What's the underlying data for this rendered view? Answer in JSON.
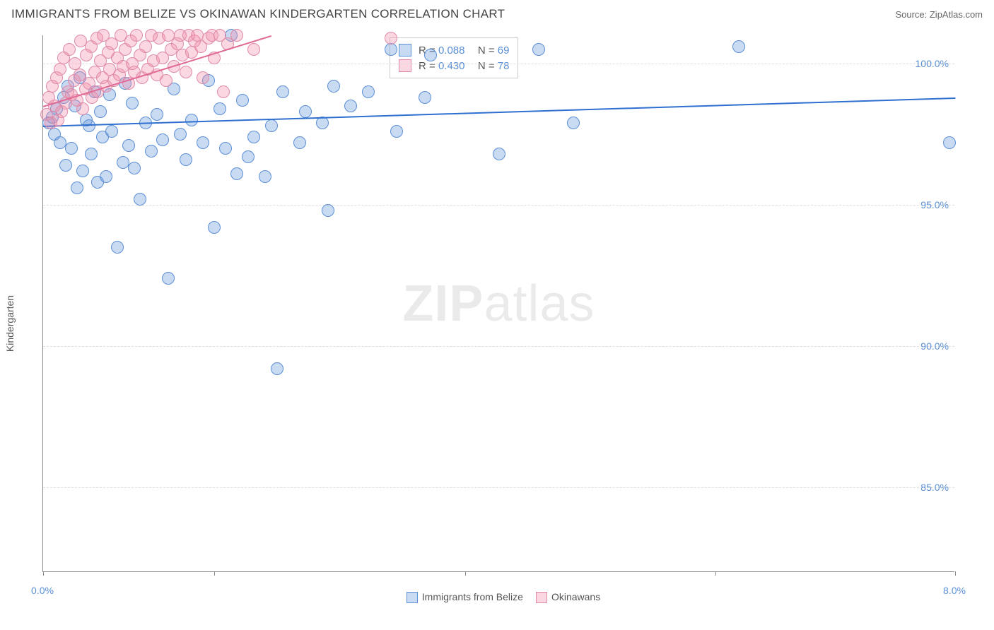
{
  "header": {
    "title": "IMMIGRANTS FROM BELIZE VS OKINAWAN KINDERGARTEN CORRELATION CHART",
    "source": "Source: ZipAtlas.com"
  },
  "chart": {
    "type": "scatter",
    "ylabel": "Kindergarten",
    "xlim": [
      0.0,
      8.0
    ],
    "ylim": [
      82.0,
      101.0
    ],
    "ytick_values": [
      85.0,
      90.0,
      95.0,
      100.0
    ],
    "ytick_labels": [
      "85.0%",
      "90.0%",
      "95.0%",
      "100.0%"
    ],
    "xtick_positions": [
      0.0,
      1.5,
      3.7,
      5.9,
      8.0
    ],
    "xmin_label": "0.0%",
    "xmax_label": "8.0%",
    "watermark": "ZIPatlas",
    "grid_color": "#dddddd",
    "axis_color": "#888888",
    "label_color": "#5b8fd6",
    "background_color": "#ffffff",
    "marker_radius": 9,
    "marker_fill_opacity": 0.35,
    "series": [
      {
        "name": "Immigrants from Belize",
        "color_fill": "rgba(100,150,220,0.35)",
        "color_stroke": "#5b8fd6",
        "trend_color": "#2f6fd0",
        "r_value": "0.088",
        "n_value": "69",
        "trend": {
          "x1": 0.0,
          "y1": 97.8,
          "x2": 8.0,
          "y2": 98.8
        },
        "points": [
          [
            0.05,
            97.9
          ],
          [
            0.08,
            98.1
          ],
          [
            0.1,
            97.5
          ],
          [
            0.12,
            98.4
          ],
          [
            0.15,
            97.2
          ],
          [
            0.18,
            98.8
          ],
          [
            0.2,
            96.4
          ],
          [
            0.22,
            99.2
          ],
          [
            0.25,
            97.0
          ],
          [
            0.28,
            98.5
          ],
          [
            0.3,
            95.6
          ],
          [
            0.32,
            99.5
          ],
          [
            0.35,
            96.2
          ],
          [
            0.38,
            98.0
          ],
          [
            0.4,
            97.8
          ],
          [
            0.42,
            96.8
          ],
          [
            0.45,
            99.0
          ],
          [
            0.48,
            95.8
          ],
          [
            0.5,
            98.3
          ],
          [
            0.52,
            97.4
          ],
          [
            0.55,
            96.0
          ],
          [
            0.58,
            98.9
          ],
          [
            0.6,
            97.6
          ],
          [
            0.65,
            93.5
          ],
          [
            0.7,
            96.5
          ],
          [
            0.72,
            99.3
          ],
          [
            0.75,
            97.1
          ],
          [
            0.78,
            98.6
          ],
          [
            0.8,
            96.3
          ],
          [
            0.85,
            95.2
          ],
          [
            0.9,
            97.9
          ],
          [
            0.95,
            96.9
          ],
          [
            1.0,
            98.2
          ],
          [
            1.05,
            97.3
          ],
          [
            1.1,
            92.4
          ],
          [
            1.15,
            99.1
          ],
          [
            1.2,
            97.5
          ],
          [
            1.25,
            96.6
          ],
          [
            1.3,
            98.0
          ],
          [
            1.4,
            97.2
          ],
          [
            1.45,
            99.4
          ],
          [
            1.5,
            94.2
          ],
          [
            1.55,
            98.4
          ],
          [
            1.6,
            97.0
          ],
          [
            1.65,
            101.0
          ],
          [
            1.7,
            96.1
          ],
          [
            1.75,
            98.7
          ],
          [
            1.8,
            96.7
          ],
          [
            1.85,
            97.4
          ],
          [
            1.95,
            96.0
          ],
          [
            2.0,
            97.8
          ],
          [
            2.05,
            89.2
          ],
          [
            2.1,
            99.0
          ],
          [
            2.25,
            97.2
          ],
          [
            2.3,
            98.3
          ],
          [
            2.45,
            97.9
          ],
          [
            2.5,
            94.8
          ],
          [
            2.55,
            99.2
          ],
          [
            2.7,
            98.5
          ],
          [
            2.85,
            99.0
          ],
          [
            3.05,
            100.5
          ],
          [
            3.1,
            97.6
          ],
          [
            3.35,
            98.8
          ],
          [
            3.4,
            100.3
          ],
          [
            4.0,
            96.8
          ],
          [
            4.35,
            100.5
          ],
          [
            4.65,
            97.9
          ],
          [
            6.1,
            100.6
          ],
          [
            7.95,
            97.2
          ]
        ]
      },
      {
        "name": "Okinawans",
        "color_fill": "rgba(240,140,170,0.35)",
        "color_stroke": "#e08aa8",
        "trend_color": "#e06a95",
        "r_value": "0.430",
        "n_value": "78",
        "trend": {
          "x1": 0.0,
          "y1": 98.5,
          "x2": 2.0,
          "y2": 101.0
        },
        "points": [
          [
            0.03,
            98.2
          ],
          [
            0.05,
            98.8
          ],
          [
            0.07,
            97.9
          ],
          [
            0.08,
            99.2
          ],
          [
            0.1,
            98.5
          ],
          [
            0.12,
            99.5
          ],
          [
            0.13,
            98.0
          ],
          [
            0.15,
            99.8
          ],
          [
            0.16,
            98.3
          ],
          [
            0.18,
            100.2
          ],
          [
            0.2,
            98.6
          ],
          [
            0.22,
            99.0
          ],
          [
            0.23,
            100.5
          ],
          [
            0.25,
            98.9
          ],
          [
            0.27,
            99.4
          ],
          [
            0.28,
            100.0
          ],
          [
            0.3,
            98.7
          ],
          [
            0.32,
            99.6
          ],
          [
            0.33,
            100.8
          ],
          [
            0.35,
            98.4
          ],
          [
            0.37,
            99.1
          ],
          [
            0.38,
            100.3
          ],
          [
            0.4,
            99.3
          ],
          [
            0.42,
            100.6
          ],
          [
            0.43,
            98.8
          ],
          [
            0.45,
            99.7
          ],
          [
            0.47,
            100.9
          ],
          [
            0.48,
            99.0
          ],
          [
            0.5,
            100.1
          ],
          [
            0.52,
            99.5
          ],
          [
            0.53,
            101.0
          ],
          [
            0.55,
            99.2
          ],
          [
            0.57,
            100.4
          ],
          [
            0.58,
            99.8
          ],
          [
            0.6,
            100.7
          ],
          [
            0.62,
            99.4
          ],
          [
            0.65,
            100.2
          ],
          [
            0.67,
            99.6
          ],
          [
            0.68,
            101.0
          ],
          [
            0.7,
            99.9
          ],
          [
            0.72,
            100.5
          ],
          [
            0.75,
            99.3
          ],
          [
            0.77,
            100.8
          ],
          [
            0.78,
            100.0
          ],
          [
            0.8,
            99.7
          ],
          [
            0.82,
            101.0
          ],
          [
            0.85,
            100.3
          ],
          [
            0.87,
            99.5
          ],
          [
            0.9,
            100.6
          ],
          [
            0.92,
            99.8
          ],
          [
            0.95,
            101.0
          ],
          [
            0.97,
            100.1
          ],
          [
            1.0,
            99.6
          ],
          [
            1.02,
            100.9
          ],
          [
            1.05,
            100.2
          ],
          [
            1.08,
            99.4
          ],
          [
            1.1,
            101.0
          ],
          [
            1.12,
            100.5
          ],
          [
            1.15,
            99.9
          ],
          [
            1.18,
            100.7
          ],
          [
            1.2,
            101.0
          ],
          [
            1.22,
            100.3
          ],
          [
            1.25,
            99.7
          ],
          [
            1.28,
            101.0
          ],
          [
            1.3,
            100.4
          ],
          [
            1.33,
            100.8
          ],
          [
            1.35,
            101.0
          ],
          [
            1.38,
            100.6
          ],
          [
            1.4,
            99.5
          ],
          [
            1.45,
            100.9
          ],
          [
            1.48,
            101.0
          ],
          [
            1.5,
            100.2
          ],
          [
            1.55,
            101.0
          ],
          [
            1.58,
            99.0
          ],
          [
            1.62,
            100.7
          ],
          [
            1.7,
            101.0
          ],
          [
            1.85,
            100.5
          ],
          [
            3.05,
            100.9
          ]
        ]
      }
    ]
  },
  "legend_box": {
    "r_label": "R =",
    "n_label": "N ="
  },
  "bottom_legend": {
    "items": [
      "Immigrants from Belize",
      "Okinawans"
    ]
  }
}
